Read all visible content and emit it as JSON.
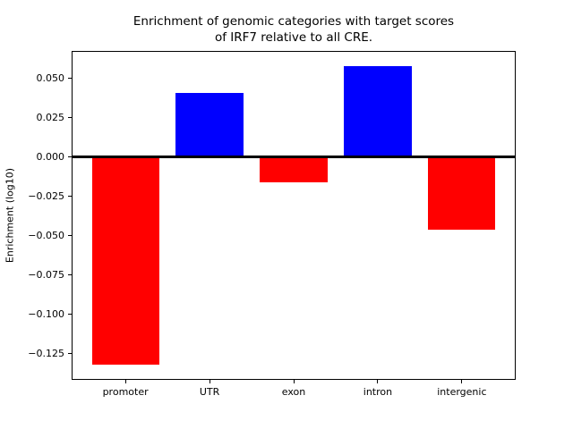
{
  "title": {
    "line1": "Enrichment of genomic categories with target scores",
    "line2": "of IRF7 relative to all CRE."
  },
  "ylabel": "Enrichment (log10)",
  "chart_data": {
    "type": "bar",
    "title": "Enrichment of genomic categories with target scores\nof IRF7 relative to all CRE.",
    "xlabel": "",
    "ylabel": "Enrichment (log10)",
    "categories": [
      "promoter",
      "UTR",
      "exon",
      "intron",
      "intergenic"
    ],
    "values": [
      -0.132,
      0.041,
      -0.016,
      0.058,
      -0.046
    ],
    "bar_colors": [
      "#ff0000",
      "#0000ff",
      "#ff0000",
      "#0000ff",
      "#ff0000"
    ],
    "positive_color": "#0000ff",
    "negative_color": "#ff0000",
    "bar_width": 0.8,
    "ylim": [
      -0.1415,
      0.0675
    ],
    "xlim": [
      -0.64,
      4.64
    ],
    "yticks": [
      0.05,
      0.025,
      0.0,
      -0.025,
      -0.05,
      -0.075,
      -0.1,
      -0.125
    ],
    "ytick_labels": [
      "0.050",
      "0.025",
      "0.000",
      "−0.025",
      "−0.050",
      "−0.075",
      "−0.100",
      "−0.125"
    ],
    "grid": false,
    "zero_line": true,
    "legend": null
  }
}
